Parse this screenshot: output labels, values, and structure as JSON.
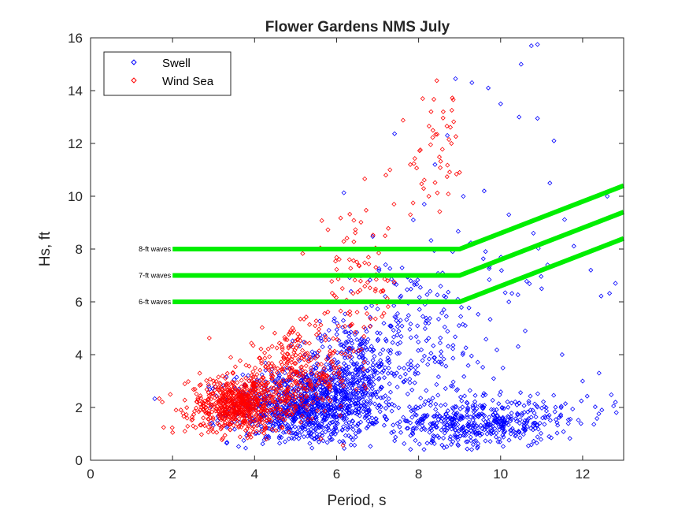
{
  "chart_data": {
    "type": "scatter",
    "title": "Flower Gardens NMS July",
    "xlabel": "Period, s",
    "ylabel": "Hs, ft",
    "xlim": [
      0,
      13
    ],
    "ylim": [
      0,
      16
    ],
    "xticks": [
      "0",
      "2",
      "4",
      "6",
      "8",
      "10",
      "12"
    ],
    "yticks": [
      "0",
      "2",
      "4",
      "6",
      "8",
      "10",
      "12",
      "14",
      "16"
    ],
    "grid": false,
    "legend_position": "top-left",
    "series": [
      {
        "name": "Swell",
        "color": "#0000ff",
        "marker": "diamond",
        "clusters": [
          {
            "x_center": 5.2,
            "y_center": 2.0,
            "x_spread": 0.9,
            "y_spread": 0.7,
            "count": 900
          },
          {
            "x_center": 6.3,
            "y_center": 3.2,
            "x_spread": 0.6,
            "y_spread": 1.0,
            "count": 350
          },
          {
            "x_center": 9.4,
            "y_center": 1.4,
            "x_spread": 1.0,
            "y_spread": 0.45,
            "count": 450
          },
          {
            "x_center": 7.8,
            "y_center": 4.5,
            "x_spread": 0.8,
            "y_spread": 1.6,
            "count": 180
          },
          {
            "x_center": 9.0,
            "y_center": 5.5,
            "x_spread": 1.4,
            "y_spread": 2.5,
            "count": 90
          },
          {
            "x_center": 11.3,
            "y_center": 1.9,
            "x_spread": 0.9,
            "y_spread": 0.3,
            "count": 40
          }
        ],
        "outliers": [
          [
            10.75,
            15.7
          ],
          [
            10.9,
            15.75
          ],
          [
            10.5,
            15.0
          ],
          [
            10.45,
            13.0
          ],
          [
            10.9,
            12.95
          ],
          [
            11.3,
            12.1
          ],
          [
            8.9,
            14.45
          ],
          [
            9.3,
            14.3
          ],
          [
            9.7,
            14.1
          ],
          [
            10.0,
            13.5
          ],
          [
            11.2,
            10.5
          ],
          [
            12.2,
            7.2
          ],
          [
            12.8,
            6.7
          ],
          [
            11.5,
            4.0
          ],
          [
            12.0,
            3.0
          ],
          [
            12.4,
            3.3
          ],
          [
            12.8,
            2.2
          ],
          [
            12.6,
            10.0
          ],
          [
            8.7,
            12.3
          ],
          [
            8.4,
            11.2
          ],
          [
            9.6,
            10.2
          ],
          [
            10.2,
            9.3
          ],
          [
            10.8,
            8.6
          ],
          [
            11.0,
            6.5
          ],
          [
            10.6,
            4.9
          ]
        ]
      },
      {
        "name": "Wind Sea",
        "color": "#ff0000",
        "marker": "diamond",
        "clusters": [
          {
            "x_center": 3.6,
            "y_center": 2.1,
            "x_spread": 0.6,
            "y_spread": 0.5,
            "count": 650
          },
          {
            "x_center": 5.0,
            "y_center": 3.3,
            "x_spread": 0.7,
            "y_spread": 0.8,
            "count": 300
          },
          {
            "x_center": 6.5,
            "y_center": 6.5,
            "x_spread": 0.5,
            "y_spread": 1.4,
            "count": 90
          },
          {
            "x_center": 8.5,
            "y_center": 11.5,
            "x_spread": 0.35,
            "y_spread": 1.2,
            "count": 40
          }
        ],
        "outliers": [
          [
            2.0,
            1.05
          ],
          [
            2.3,
            1.1
          ],
          [
            2.5,
            1.3
          ],
          [
            7.3,
            11.0
          ],
          [
            7.2,
            10.8
          ],
          [
            7.8,
            9.3
          ],
          [
            8.1,
            13.7
          ],
          [
            8.6,
            13.2
          ],
          [
            8.8,
            12.0
          ],
          [
            7.4,
            9.7
          ],
          [
            9.0,
            10.9
          ],
          [
            8.25,
            10.0
          ],
          [
            8.35,
            12.5
          ]
        ]
      }
    ],
    "threshold_lines": [
      {
        "label": "8-ft waves",
        "color": "#00ee00",
        "points": [
          [
            2,
            8
          ],
          [
            9,
            8
          ],
          [
            13,
            10.4
          ]
        ]
      },
      {
        "label": "7-ft waves",
        "color": "#00ee00",
        "points": [
          [
            2,
            7
          ],
          [
            9,
            7
          ],
          [
            13,
            9.4
          ]
        ]
      },
      {
        "label": "6-ft waves",
        "color": "#00ee00",
        "points": [
          [
            2,
            6
          ],
          [
            9,
            6
          ],
          [
            13,
            8.4
          ]
        ]
      }
    ]
  }
}
